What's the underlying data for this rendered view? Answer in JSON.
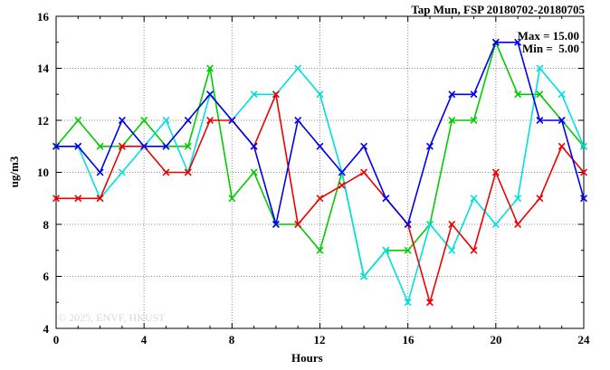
{
  "window": {
    "title": "Tap Mun, FSP 20180702-20180705"
  },
  "annotation": {
    "max_label": "Max = 15.00",
    "min_label": "Min =  5.00"
  },
  "watermark": "© 2025, ENVF, HKUST",
  "chart_data": {
    "type": "line",
    "title": "Tap Mun, FSP 20180702-20180705",
    "xlabel": "Hours",
    "ylabel": "ug/m3",
    "xlim": [
      0,
      24
    ],
    "ylim": [
      4,
      16
    ],
    "xticks": [
      0,
      4,
      8,
      12,
      16,
      20,
      24
    ],
    "yticks": [
      16,
      14,
      12,
      10,
      8,
      6,
      4
    ],
    "grid": true,
    "legend_position": "none",
    "max_value": 15.0,
    "min_value": 5.0,
    "x": [
      0,
      1,
      2,
      3,
      4,
      5,
      6,
      7,
      8,
      9,
      10,
      11,
      12,
      13,
      14,
      15,
      16,
      17,
      18,
      19,
      20,
      21,
      22,
      23,
      24
    ],
    "series": [
      {
        "name": "series-green",
        "color": "#00cc00",
        "values": [
          11,
          12,
          11,
          11,
          12,
          11,
          11,
          14,
          9,
          10,
          8,
          8,
          7,
          10,
          6,
          7,
          7,
          8,
          12,
          12,
          15,
          13,
          13,
          12,
          11
        ]
      },
      {
        "name": "series-cyan",
        "color": "#00e0e0",
        "values": [
          11,
          11,
          9,
          10,
          11,
          12,
          10,
          13,
          12,
          13,
          13,
          14,
          13,
          10,
          6,
          7,
          5,
          8,
          7,
          9,
          8,
          9,
          14,
          13,
          11
        ]
      },
      {
        "name": "series-red",
        "color": "#ee0000",
        "values": [
          9,
          9,
          9,
          11,
          11,
          10,
          10,
          12,
          12,
          11,
          13,
          8,
          9,
          9.5,
          10,
          9,
          8,
          5,
          8,
          7,
          10,
          8,
          9,
          11,
          10
        ]
      },
      {
        "name": "series-blue",
        "color": "#0000ee",
        "values": [
          11,
          11,
          10,
          12,
          11,
          11,
          12,
          13,
          12,
          11,
          8,
          12,
          11,
          10,
          11,
          9,
          8,
          11,
          13,
          13,
          15,
          15,
          12,
          12,
          9
        ]
      }
    ]
  },
  "plot": {
    "grid_color": "#8a8a8a",
    "frame_color": "#000000"
  }
}
